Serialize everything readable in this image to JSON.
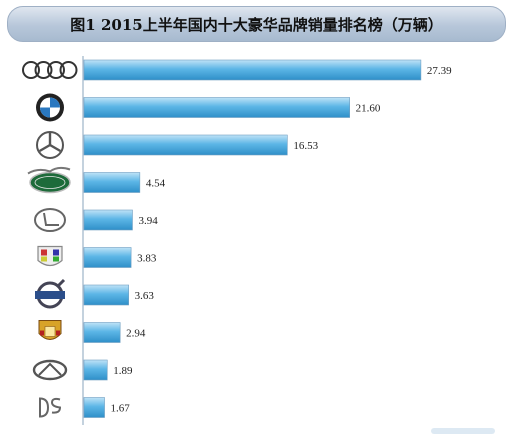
{
  "title": "图1  2015上半年国内十大豪华品牌销量排名榜（万辆）",
  "chart_data": {
    "type": "bar",
    "orientation": "horizontal",
    "title": "图1  2015上半年国内十大豪华品牌销量排名榜（万辆）",
    "xlabel": "",
    "ylabel": "",
    "xlim": [
      0,
      30
    ],
    "grid": false,
    "legend": "none",
    "categories": [
      "audi-logo",
      "bmw-logo",
      "mercedes-logo",
      "landrover-logo",
      "lexus-logo",
      "cadillac-logo",
      "volvo-logo",
      "porsche-logo",
      "infiniti-logo",
      "ds-logo"
    ],
    "values": [
      27.39,
      21.6,
      16.53,
      4.54,
      3.94,
      3.83,
      3.63,
      2.94,
      1.89,
      1.67
    ],
    "value_labels": [
      "27.39",
      "21.60",
      "16.53",
      "4.54",
      "3.94",
      "3.83",
      "3.63",
      "2.94",
      "1.89",
      "1.67"
    ],
    "bar_color": "#4aa8dc"
  }
}
